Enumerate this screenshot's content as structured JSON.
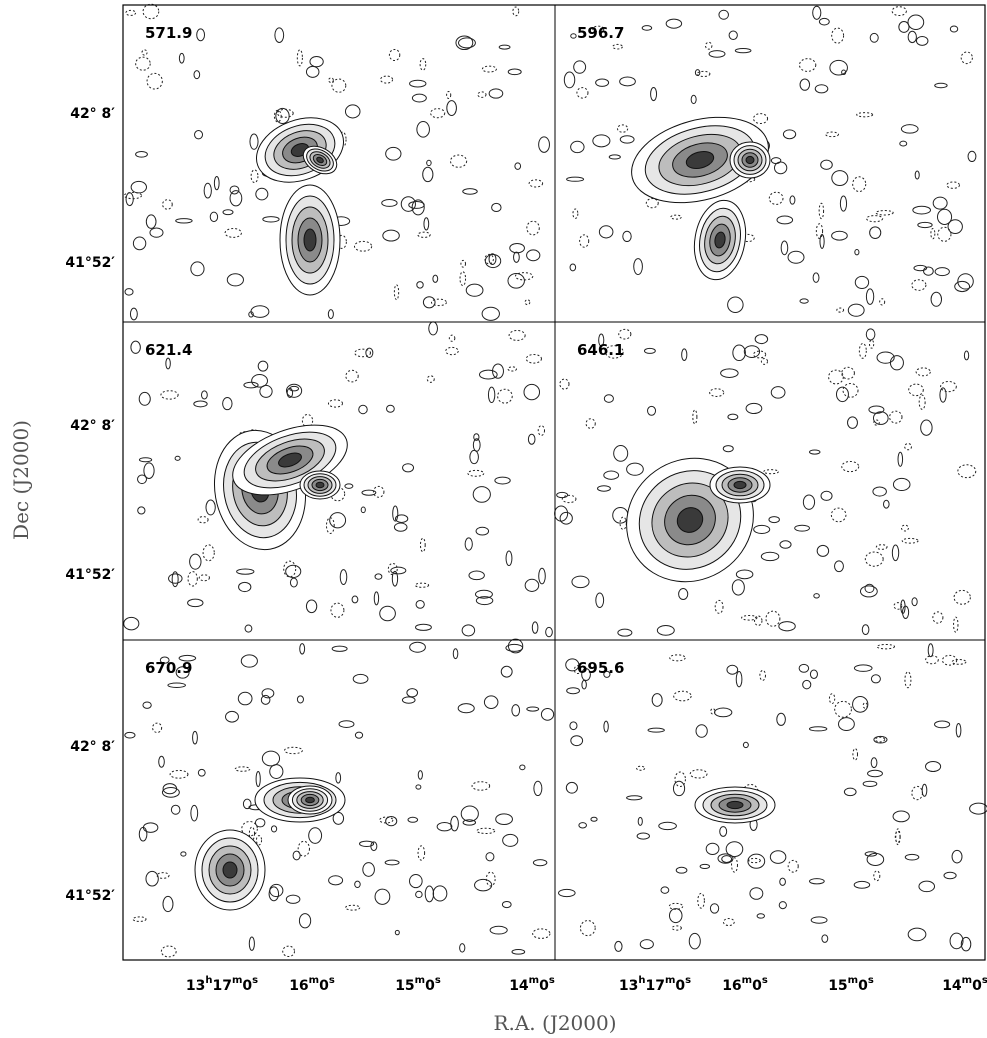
{
  "figure": {
    "panels": [
      {
        "label": "571.9"
      },
      {
        "label": "596.7"
      },
      {
        "label": "621.4"
      },
      {
        "label": "646.1"
      },
      {
        "label": "670.9"
      },
      {
        "label": "695.6"
      }
    ],
    "y_axis": {
      "label": "Dec (J2000)",
      "ticks": [
        "42° 8′",
        "41°52′"
      ]
    },
    "x_axis": {
      "label": "R.A. (J2000)",
      "ticks": [
        [
          "13",
          "h",
          "17",
          "m",
          "0",
          "s"
        ],
        [
          "16",
          "m",
          "0",
          "s"
        ],
        [
          "15",
          "m",
          "0",
          "s"
        ],
        [
          "14",
          "m",
          "0",
          "s"
        ]
      ]
    }
  }
}
